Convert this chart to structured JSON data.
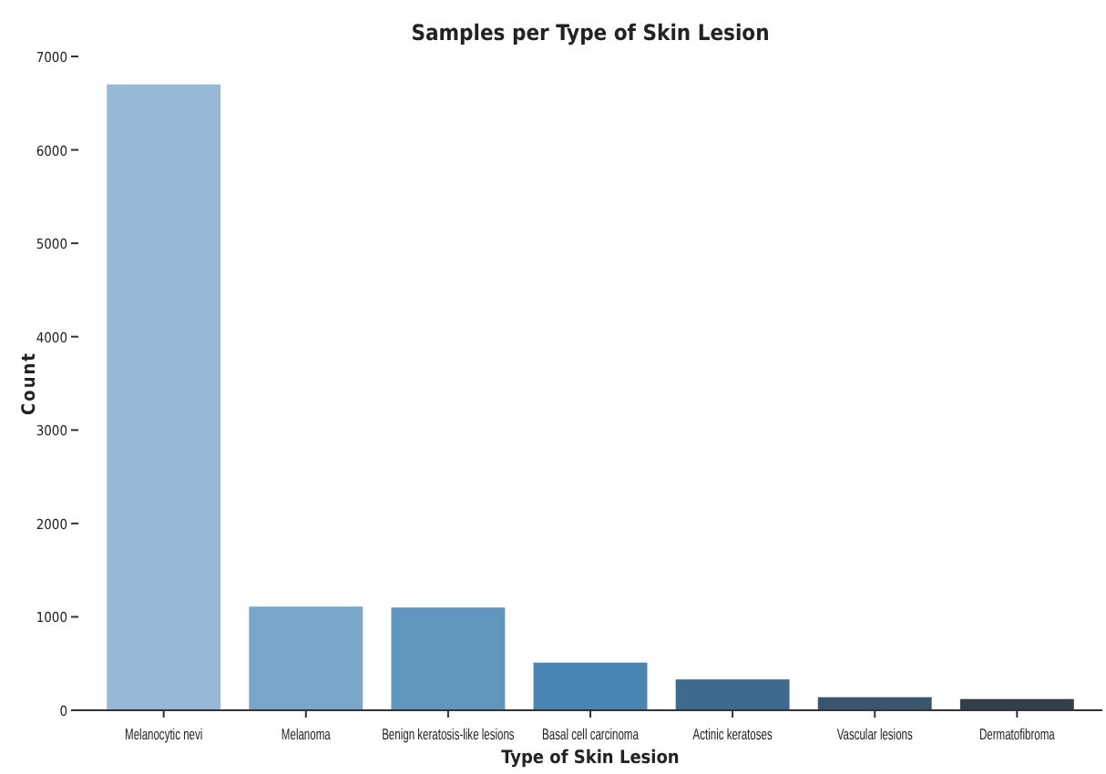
{
  "chart_data": {
    "type": "bar",
    "title": "Samples per Type of Skin Lesion",
    "xlabel": "Type of Skin Lesion",
    "ylabel": "Count",
    "categories": [
      "Melanocytic nevi",
      "Melanoma",
      "Benign keratosis-like lesions",
      "Basal cell carcinoma",
      "Actinic keratoses",
      "Vascular lesions",
      "Dermatofibroma"
    ],
    "values": [
      6700,
      1110,
      1100,
      510,
      330,
      140,
      120
    ],
    "colors": [
      "#95b9d6",
      "#7aa7c9",
      "#6297bd",
      "#4a84b2",
      "#3e6a8f",
      "#3a566f",
      "#323e4a"
    ],
    "ylim": [
      0,
      7000
    ],
    "yticks": [
      0,
      1000,
      2000,
      3000,
      4000,
      5000,
      6000,
      7000
    ],
    "grid": false
  }
}
